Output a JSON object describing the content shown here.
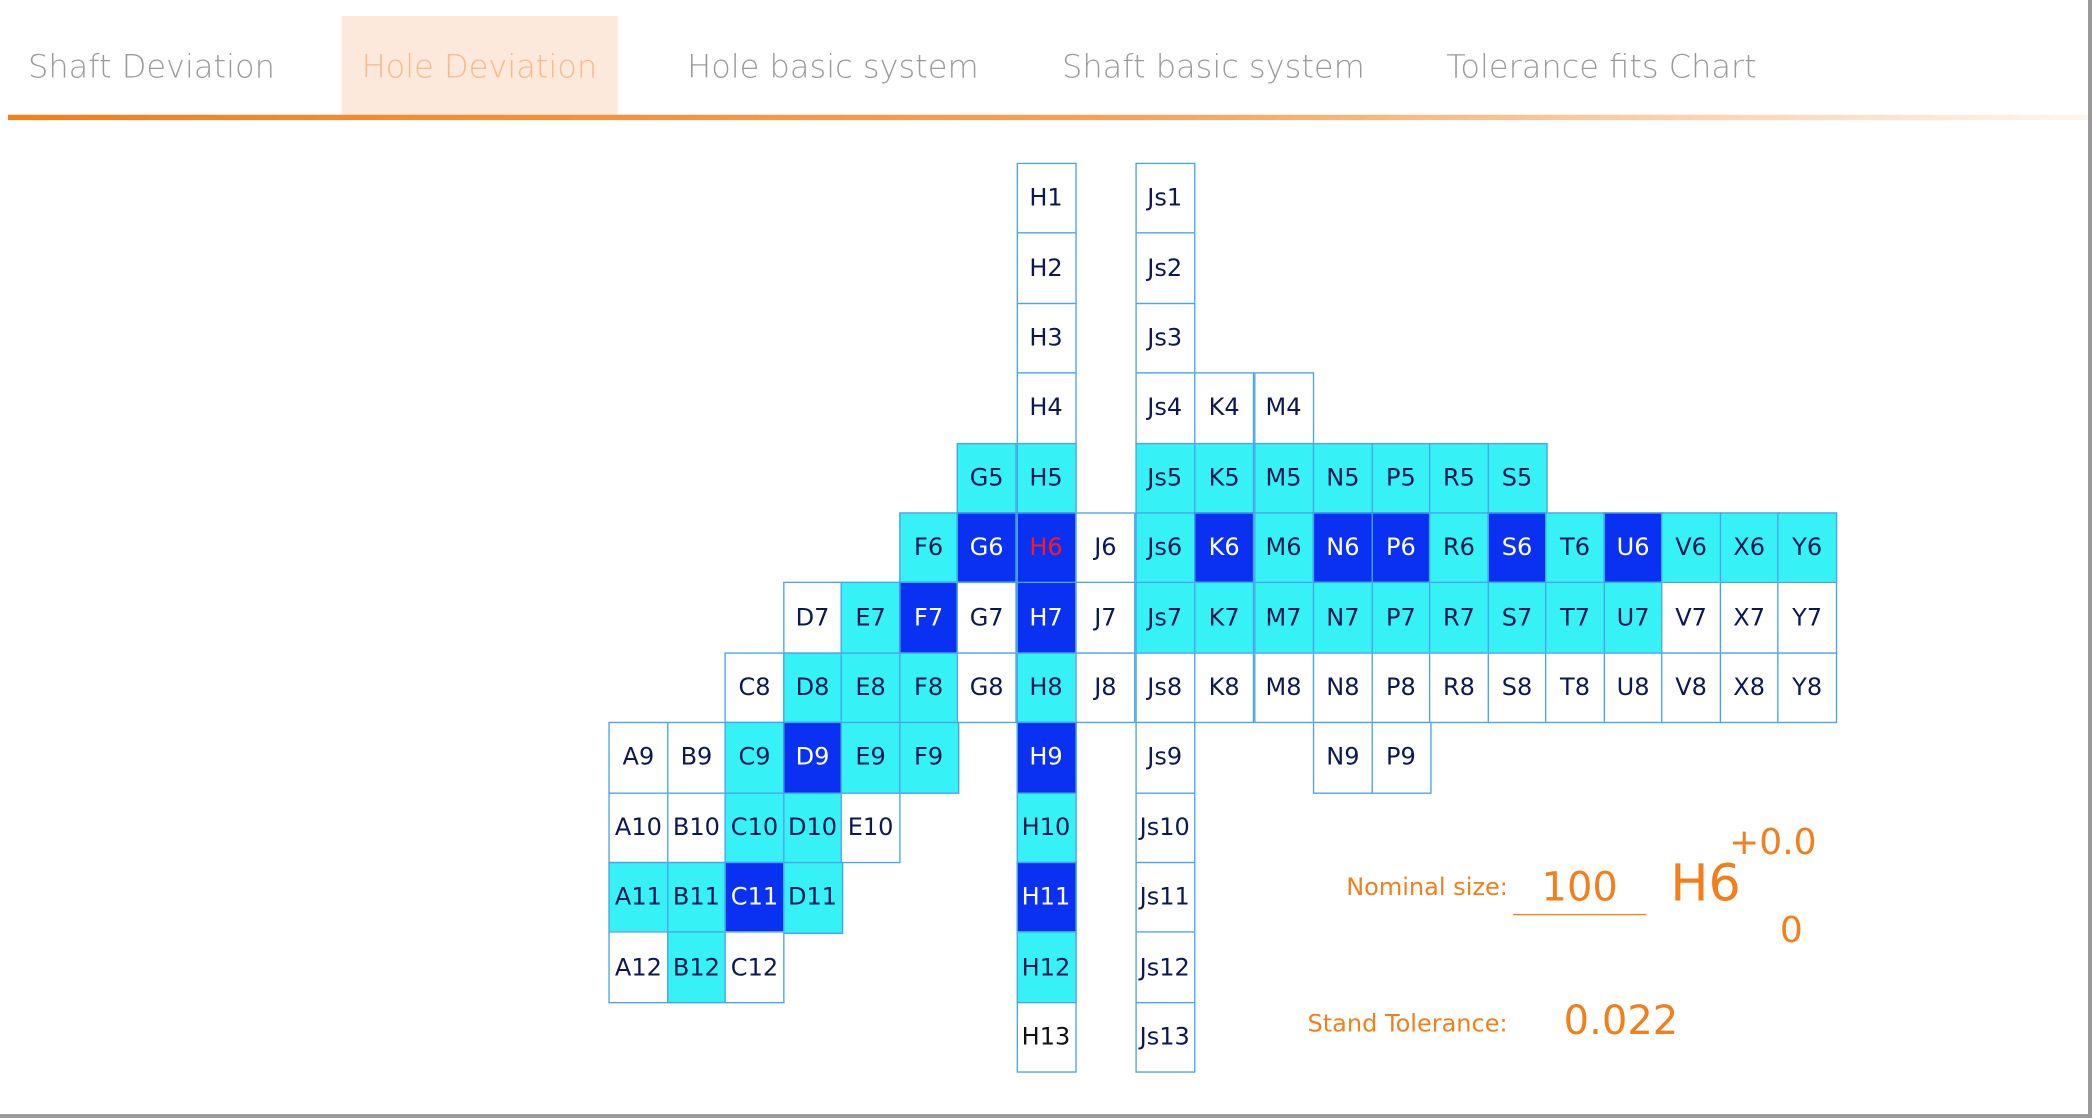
{
  "tabs": [
    {
      "label": "Shaft Deviation",
      "active": false
    },
    {
      "label": "Hole Deviation",
      "active": true
    },
    {
      "label": "Hole basic system",
      "active": false
    },
    {
      "label": "Shaft basic system",
      "active": false
    },
    {
      "label": "Tolerance fits Chart",
      "active": false
    }
  ],
  "colors": {
    "accent": "#f07f1e",
    "cyan": "#36f2f6",
    "blue": "#0a31f2",
    "selected": "#ff1a1a",
    "cell_text": "#0d1850"
  },
  "grid": {
    "columns": [
      "A",
      "B",
      "C",
      "D",
      "E",
      "F",
      "G",
      "H",
      "J",
      "Js",
      "K",
      "M",
      "N",
      "P",
      "R",
      "S",
      "T",
      "U",
      "V",
      "X",
      "Y"
    ],
    "grades": [
      "1",
      "2",
      "3",
      "4",
      "5",
      "6",
      "7",
      "8",
      "9",
      "10",
      "11",
      "12",
      "13"
    ],
    "selected": "H6",
    "cells": [
      {
        "label": "H1",
        "s": "w"
      },
      {
        "label": "Js1",
        "s": "w"
      },
      {
        "label": "H2",
        "s": "w"
      },
      {
        "label": "Js2",
        "s": "w"
      },
      {
        "label": "H3",
        "s": "w"
      },
      {
        "label": "Js3",
        "s": "w"
      },
      {
        "label": "H4",
        "s": "w"
      },
      {
        "label": "Js4",
        "s": "w"
      },
      {
        "label": "K4",
        "s": "w"
      },
      {
        "label": "M4",
        "s": "w"
      },
      {
        "label": "G5",
        "s": "c"
      },
      {
        "label": "H5",
        "s": "c"
      },
      {
        "label": "Js5",
        "s": "c"
      },
      {
        "label": "K5",
        "s": "c"
      },
      {
        "label": "M5",
        "s": "c"
      },
      {
        "label": "N5",
        "s": "c"
      },
      {
        "label": "P5",
        "s": "c"
      },
      {
        "label": "R5",
        "s": "c"
      },
      {
        "label": "S5",
        "s": "c"
      },
      {
        "label": "F6",
        "s": "c"
      },
      {
        "label": "G6",
        "s": "b"
      },
      {
        "label": "H6",
        "s": "b"
      },
      {
        "label": "J6",
        "s": "w"
      },
      {
        "label": "Js6",
        "s": "c"
      },
      {
        "label": "K6",
        "s": "b"
      },
      {
        "label": "M6",
        "s": "c"
      },
      {
        "label": "N6",
        "s": "b"
      },
      {
        "label": "P6",
        "s": "b"
      },
      {
        "label": "R6",
        "s": "c"
      },
      {
        "label": "S6",
        "s": "b"
      },
      {
        "label": "T6",
        "s": "c"
      },
      {
        "label": "U6",
        "s": "b"
      },
      {
        "label": "V6",
        "s": "c"
      },
      {
        "label": "X6",
        "s": "c"
      },
      {
        "label": "Y6",
        "s": "c"
      },
      {
        "label": "D7",
        "s": "w"
      },
      {
        "label": "E7",
        "s": "c"
      },
      {
        "label": "F7",
        "s": "b"
      },
      {
        "label": "G7",
        "s": "w"
      },
      {
        "label": "H7",
        "s": "b"
      },
      {
        "label": "J7",
        "s": "w"
      },
      {
        "label": "Js7",
        "s": "c"
      },
      {
        "label": "K7",
        "s": "c"
      },
      {
        "label": "M7",
        "s": "c"
      },
      {
        "label": "N7",
        "s": "c"
      },
      {
        "label": "P7",
        "s": "c"
      },
      {
        "label": "R7",
        "s": "c"
      },
      {
        "label": "S7",
        "s": "c"
      },
      {
        "label": "T7",
        "s": "c"
      },
      {
        "label": "U7",
        "s": "c"
      },
      {
        "label": "V7",
        "s": "w"
      },
      {
        "label": "X7",
        "s": "w"
      },
      {
        "label": "Y7",
        "s": "w"
      },
      {
        "label": "C8",
        "s": "w"
      },
      {
        "label": "D8",
        "s": "c"
      },
      {
        "label": "E8",
        "s": "c"
      },
      {
        "label": "F8",
        "s": "c"
      },
      {
        "label": "G8",
        "s": "w"
      },
      {
        "label": "H8",
        "s": "c"
      },
      {
        "label": "J8",
        "s": "w"
      },
      {
        "label": "Js8",
        "s": "w"
      },
      {
        "label": "K8",
        "s": "w"
      },
      {
        "label": "M8",
        "s": "w"
      },
      {
        "label": "N8",
        "s": "w"
      },
      {
        "label": "P8",
        "s": "w"
      },
      {
        "label": "R8",
        "s": "w"
      },
      {
        "label": "S8",
        "s": "w"
      },
      {
        "label": "T8",
        "s": "w"
      },
      {
        "label": "U8",
        "s": "w"
      },
      {
        "label": "V8",
        "s": "w"
      },
      {
        "label": "X8",
        "s": "w"
      },
      {
        "label": "Y8",
        "s": "w"
      },
      {
        "label": "A9",
        "s": "w"
      },
      {
        "label": "B9",
        "s": "w"
      },
      {
        "label": "C9",
        "s": "c"
      },
      {
        "label": "D9",
        "s": "b"
      },
      {
        "label": "E9",
        "s": "c"
      },
      {
        "label": "F9",
        "s": "c"
      },
      {
        "label": "H9",
        "s": "b"
      },
      {
        "label": "Js9",
        "s": "w"
      },
      {
        "label": "N9",
        "s": "w"
      },
      {
        "label": "P9",
        "s": "w"
      },
      {
        "label": "A10",
        "s": "w"
      },
      {
        "label": "B10",
        "s": "w"
      },
      {
        "label": "C10",
        "s": "c"
      },
      {
        "label": "D10",
        "s": "c"
      },
      {
        "label": "E10",
        "s": "w"
      },
      {
        "label": "H10",
        "s": "c"
      },
      {
        "label": "Js10",
        "s": "w"
      },
      {
        "label": "A11",
        "s": "c"
      },
      {
        "label": "B11",
        "s": "c"
      },
      {
        "label": "C11",
        "s": "b"
      },
      {
        "label": "D11",
        "s": "c"
      },
      {
        "label": "H11",
        "s": "b"
      },
      {
        "label": "Js11",
        "s": "w"
      },
      {
        "label": "A12",
        "s": "w"
      },
      {
        "label": "B12",
        "s": "c"
      },
      {
        "label": "C12",
        "s": "w"
      },
      {
        "label": "H12",
        "s": "c"
      },
      {
        "label": "Js12",
        "s": "w"
      },
      {
        "label": "H13",
        "s": "w"
      },
      {
        "label": "Js13",
        "s": "w"
      }
    ]
  },
  "panel": {
    "nominal_label": "Nominal size:",
    "nominal_value": "100",
    "code": "H6",
    "upper_dev": "+0.0",
    "lower_dev": "0",
    "tolerance_label": "Stand Tolerance:",
    "tolerance_value": "0.022"
  }
}
